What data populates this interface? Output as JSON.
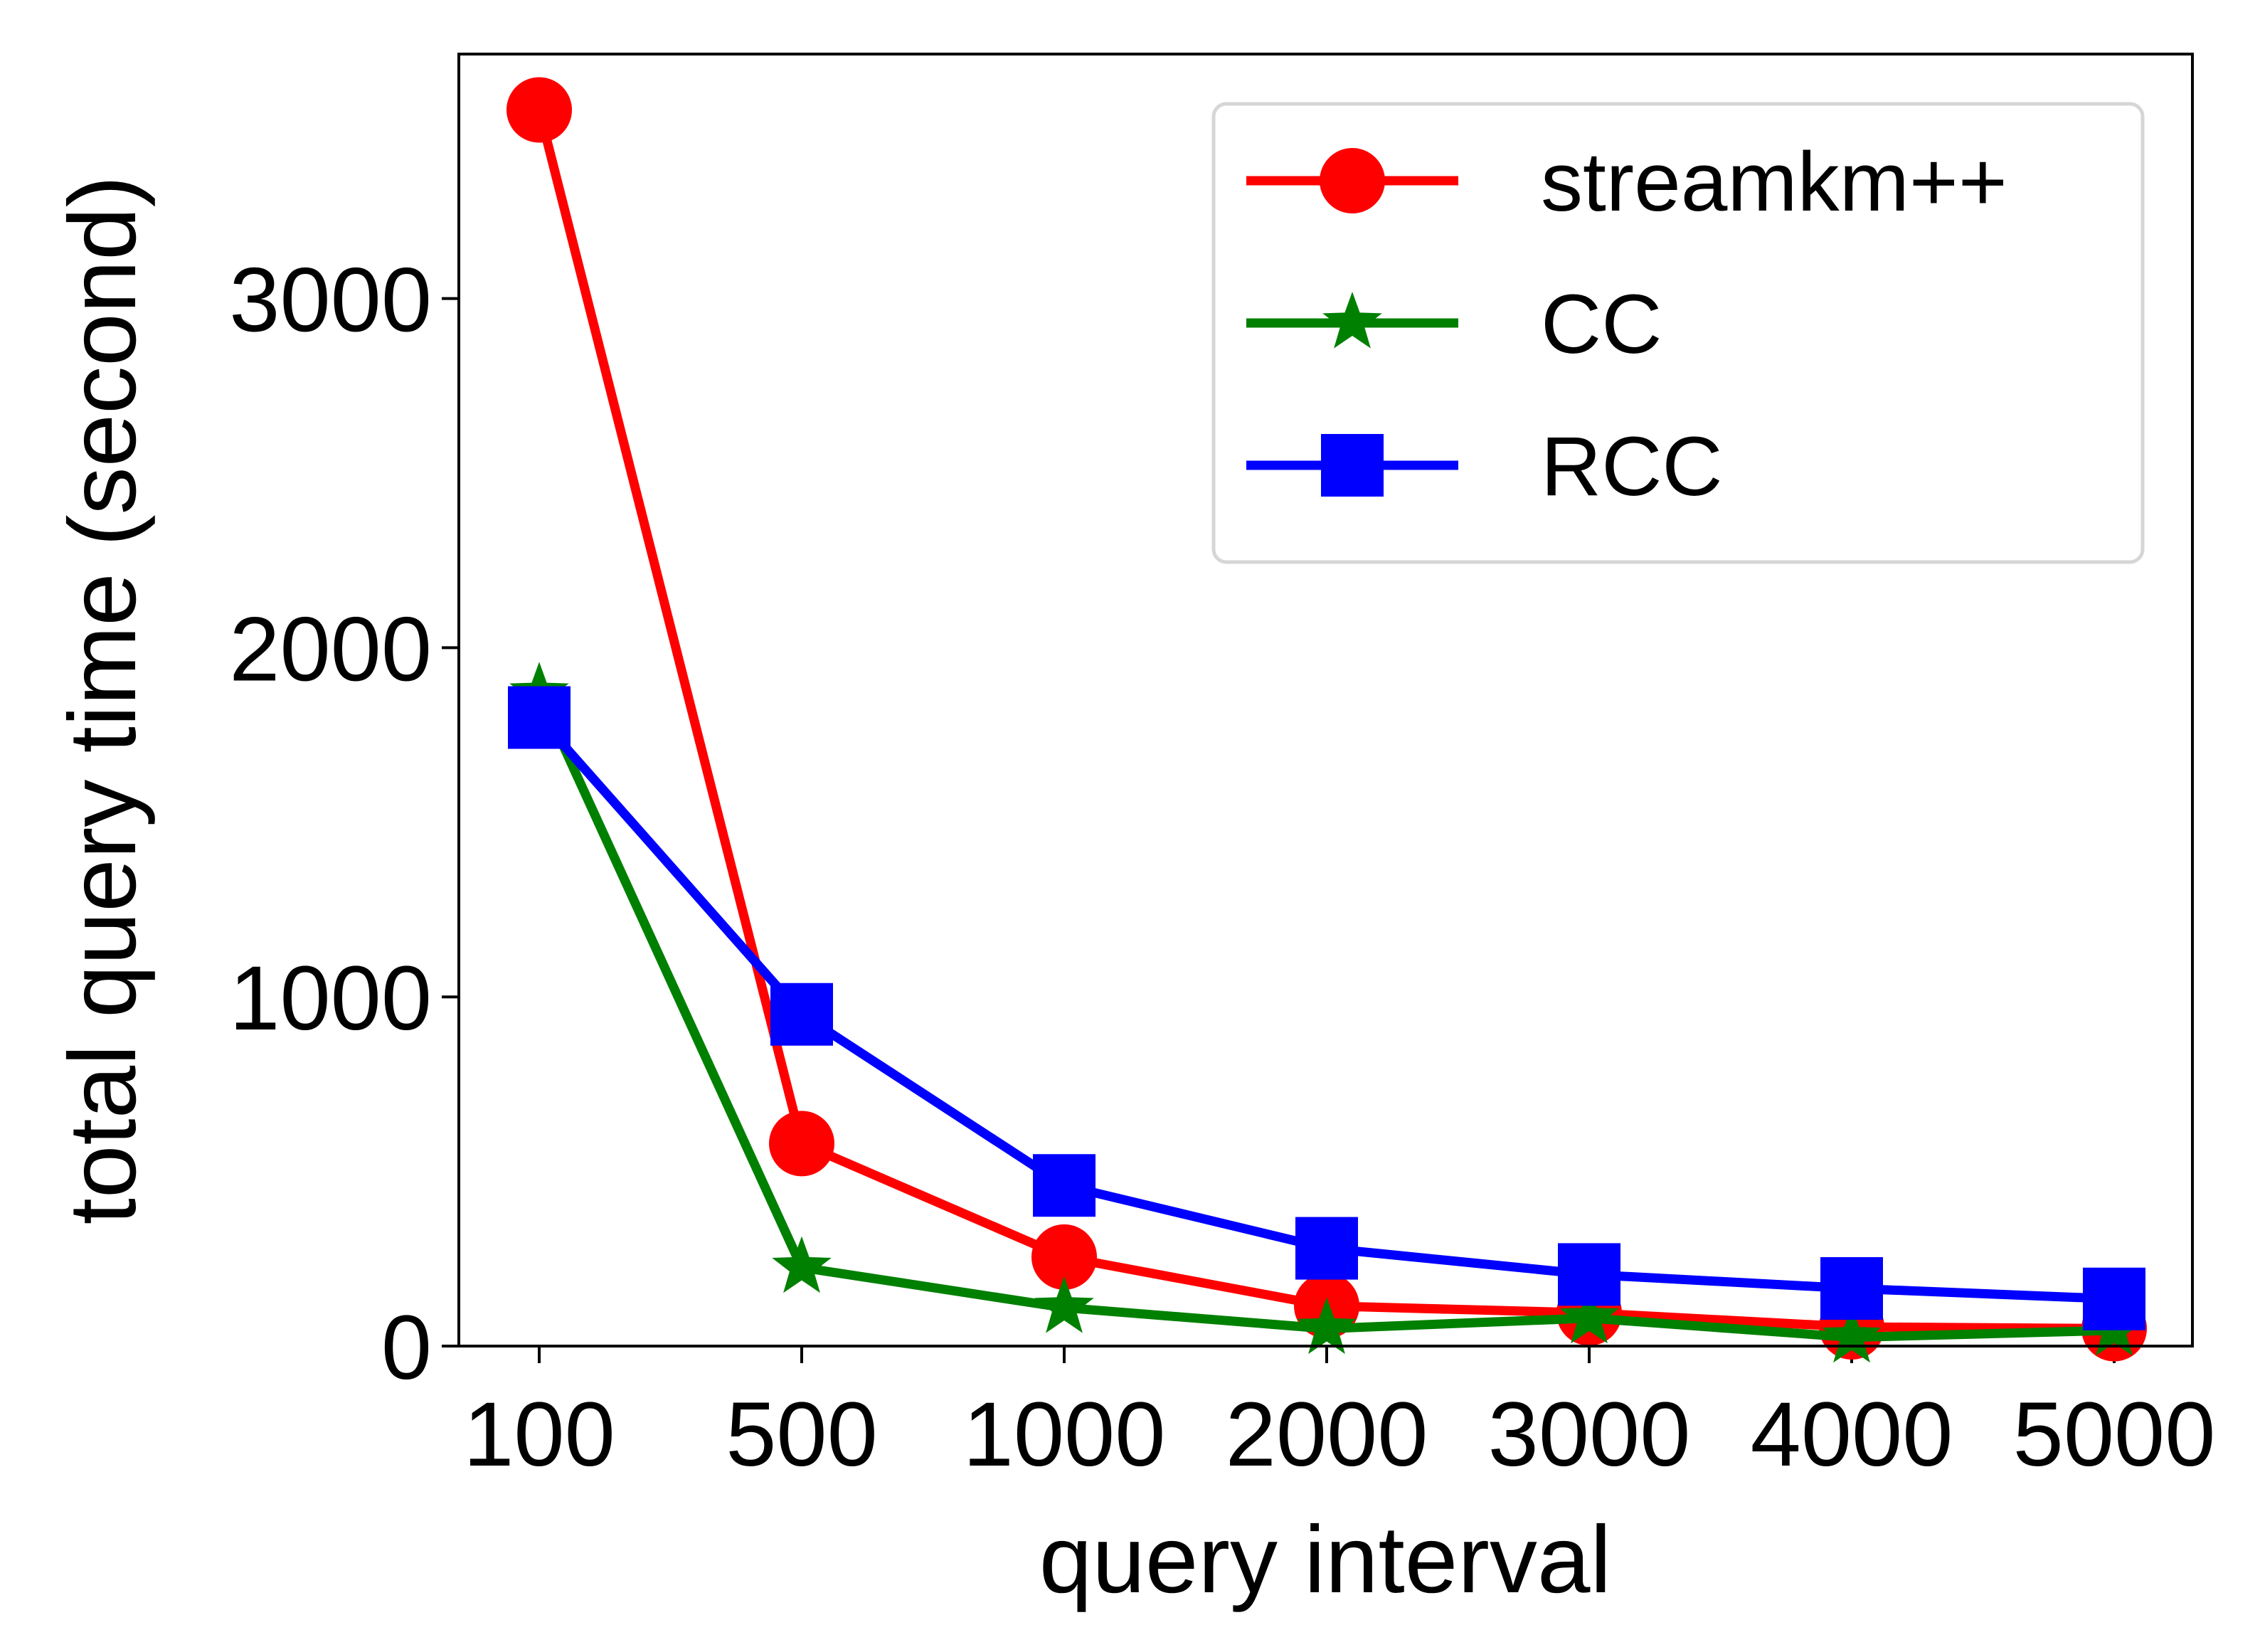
{
  "chart_data": {
    "type": "line",
    "categories": [
      "100",
      "500",
      "1000",
      "2000",
      "3000",
      "4000",
      "5000"
    ],
    "xlabel": "query interval",
    "ylabel": "total query time (second)",
    "ylim": [
      0,
      3700
    ],
    "yticks": [
      "0",
      "1000",
      "2000",
      "3000"
    ],
    "ytick_values": [
      0,
      1000,
      2000,
      3000
    ],
    "grid": false,
    "legend_position": "top-right",
    "series": [
      {
        "name": "streamkm++",
        "color": "#ff0000",
        "marker": "circle",
        "values": [
          3540,
          580,
          255,
          115,
          95,
          55,
          50
        ]
      },
      {
        "name": "CC",
        "color": "#008000",
        "marker": "star",
        "values": [
          1870,
          225,
          110,
          50,
          80,
          25,
          45
        ]
      },
      {
        "name": "RCC",
        "color": "#0000ff",
        "marker": "square",
        "values": [
          1800,
          950,
          460,
          280,
          205,
          165,
          135
        ]
      }
    ]
  }
}
